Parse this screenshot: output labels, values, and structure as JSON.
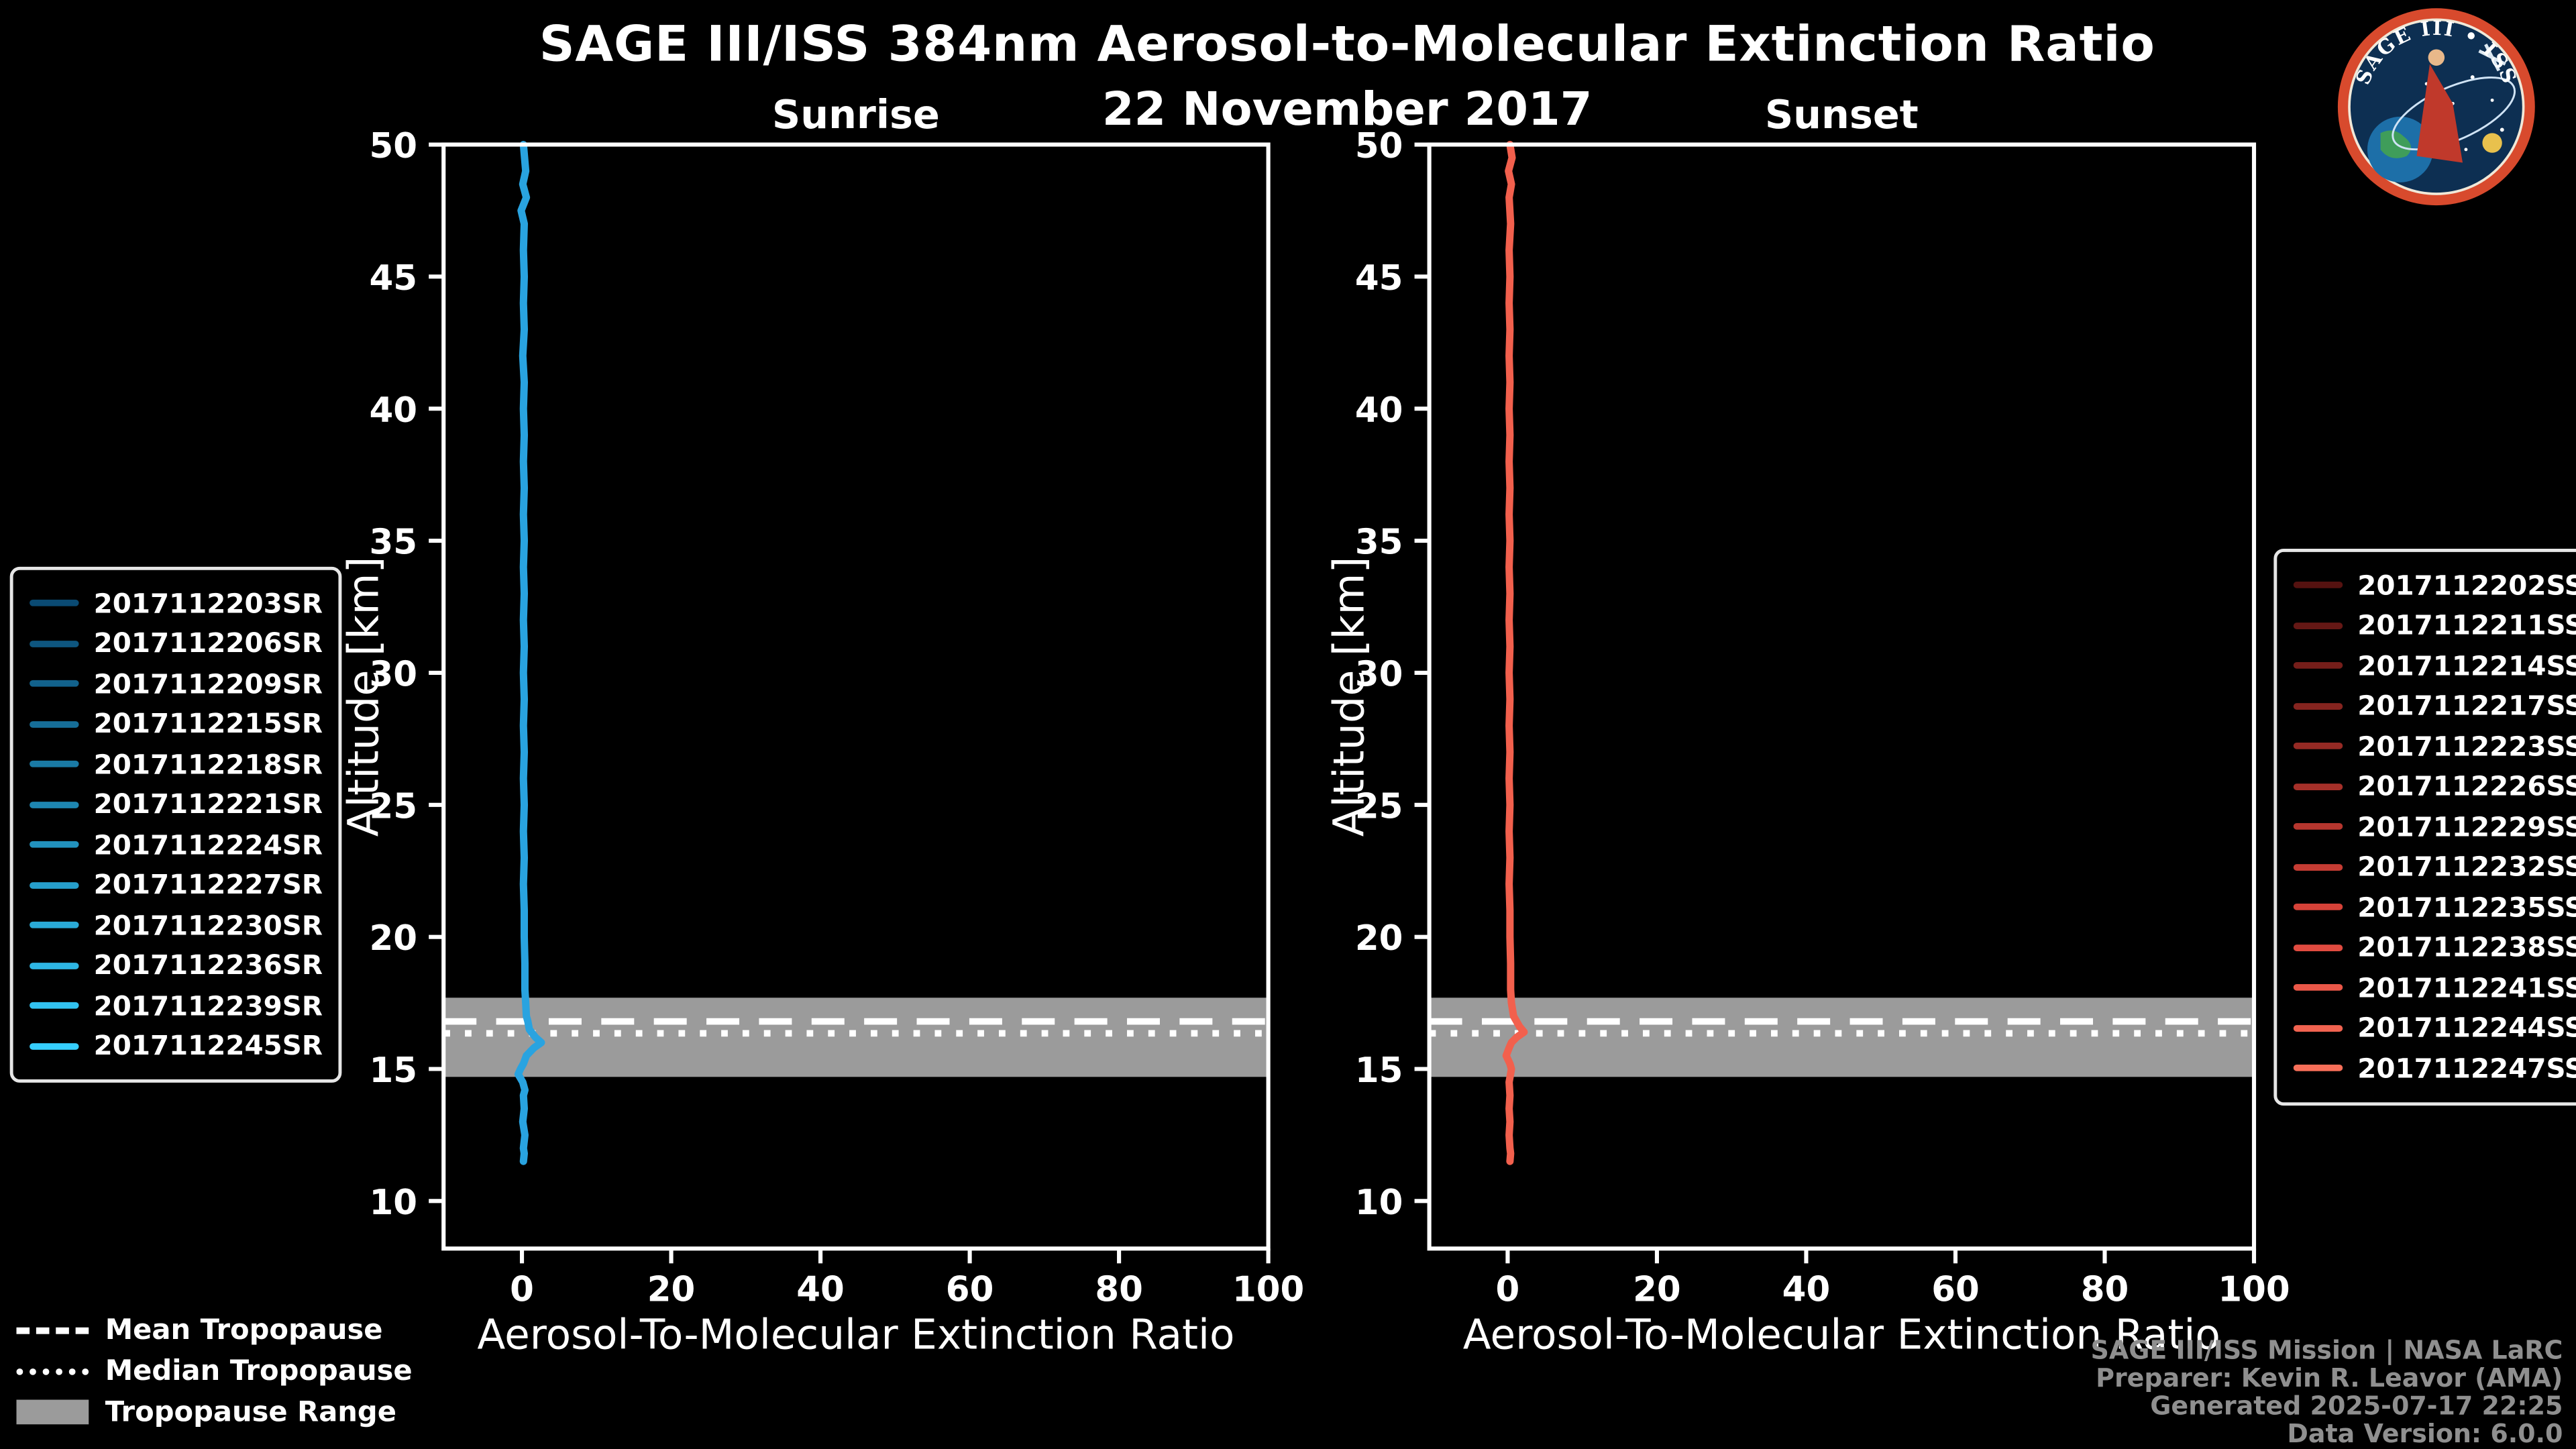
{
  "header": {
    "title": "SAGE III/ISS 384nm Aerosol-to-Molecular Extinction Ratio",
    "date": "22 November 2017"
  },
  "logo": {
    "title": "SAGE III • ISS"
  },
  "chart_data": {
    "type": "line",
    "title": "SAGE III/ISS 384nm Aerosol-to-Molecular Extinction Ratio",
    "subtitle": "22 November 2017",
    "x_label": "Aerosol-To-Molecular Extinction Ratio",
    "y_label": "Altitude [km]",
    "x_ticks": [
      0,
      20,
      40,
      60,
      80,
      100
    ],
    "y_ticks": [
      10,
      15,
      20,
      25,
      30,
      35,
      40,
      45,
      50
    ],
    "x_range": [
      -10.5,
      100
    ],
    "y_range": [
      8.2,
      50
    ],
    "grid": false,
    "tropopause": {
      "mean_km": 16.8,
      "median_km": 16.35,
      "range_km": [
        14.7,
        17.7
      ],
      "band_color": "#9b9b9b",
      "line_color": "#ffffff"
    },
    "panels": [
      {
        "id": "sunrise",
        "title": "Sunrise",
        "line_color": "#29a3e0",
        "profile": [
          [
            50,
            0.2
          ],
          [
            49,
            0.5
          ],
          [
            48.5,
            0.1
          ],
          [
            48,
            0.6
          ],
          [
            47.5,
            -0.1
          ],
          [
            47,
            0.3
          ],
          [
            46,
            0.2
          ],
          [
            45,
            0.3
          ],
          [
            44,
            0.2
          ],
          [
            43,
            0.3
          ],
          [
            42,
            0.1
          ],
          [
            41,
            0.3
          ],
          [
            40,
            0.2
          ],
          [
            39,
            0.3
          ],
          [
            38,
            0.2
          ],
          [
            37,
            0.3
          ],
          [
            36,
            0.2
          ],
          [
            35,
            0.3
          ],
          [
            34,
            0.2
          ],
          [
            33,
            0.3
          ],
          [
            32,
            0.2
          ],
          [
            31,
            0.3
          ],
          [
            30,
            0.2
          ],
          [
            29,
            0.3
          ],
          [
            28,
            0.2
          ],
          [
            27,
            0.3
          ],
          [
            26,
            0.2
          ],
          [
            25,
            0.3
          ],
          [
            24,
            0.2
          ],
          [
            23,
            0.3
          ],
          [
            22,
            0.2
          ],
          [
            21,
            0.3
          ],
          [
            20,
            0.3
          ],
          [
            19,
            0.4
          ],
          [
            18,
            0.4
          ],
          [
            17.5,
            0.5
          ],
          [
            17,
            0.6
          ],
          [
            16.8,
            0.8
          ],
          [
            16.5,
            1.0
          ],
          [
            16.2,
            1.8
          ],
          [
            16,
            2.6
          ],
          [
            15.8,
            1.6
          ],
          [
            15.5,
            0.6
          ],
          [
            15.2,
            0.2
          ],
          [
            15,
            -0.2
          ],
          [
            14.8,
            -0.5
          ],
          [
            14.5,
            0.1
          ],
          [
            14.2,
            0.4
          ],
          [
            14,
            0.2
          ],
          [
            13.5,
            0.3
          ],
          [
            13,
            0.1
          ],
          [
            12.5,
            0.4
          ],
          [
            12,
            0.2
          ],
          [
            11.8,
            0.3
          ],
          [
            11.5,
            0.2
          ]
        ]
      },
      {
        "id": "sunset",
        "title": "Sunset",
        "line_color": "#f2604d",
        "profile": [
          [
            50,
            0.3
          ],
          [
            49.5,
            0.6
          ],
          [
            49,
            0.1
          ],
          [
            48.5,
            0.5
          ],
          [
            48,
            0.2
          ],
          [
            47,
            0.4
          ],
          [
            46,
            0.2
          ],
          [
            45,
            0.3
          ],
          [
            44,
            0.2
          ],
          [
            43,
            0.3
          ],
          [
            42,
            0.2
          ],
          [
            41,
            0.3
          ],
          [
            40,
            0.2
          ],
          [
            39,
            0.3
          ],
          [
            38,
            0.2
          ],
          [
            37,
            0.3
          ],
          [
            36,
            0.2
          ],
          [
            35,
            0.3
          ],
          [
            34,
            0.2
          ],
          [
            33,
            0.3
          ],
          [
            32,
            0.2
          ],
          [
            31,
            0.3
          ],
          [
            30,
            0.2
          ],
          [
            29,
            0.3
          ],
          [
            28,
            0.2
          ],
          [
            27,
            0.3
          ],
          [
            26,
            0.2
          ],
          [
            25,
            0.3
          ],
          [
            24,
            0.2
          ],
          [
            23,
            0.3
          ],
          [
            22,
            0.2
          ],
          [
            21,
            0.3
          ],
          [
            20,
            0.3
          ],
          [
            19,
            0.4
          ],
          [
            18,
            0.4
          ],
          [
            17.5,
            0.5
          ],
          [
            17,
            0.8
          ],
          [
            16.6,
            1.6
          ],
          [
            16.4,
            2.2
          ],
          [
            16.2,
            1.2
          ],
          [
            16,
            0.5
          ],
          [
            15.8,
            0.2
          ],
          [
            15.5,
            -0.2
          ],
          [
            15.2,
            0.3
          ],
          [
            15,
            0.5
          ],
          [
            14.5,
            0.2
          ],
          [
            14,
            0.3
          ],
          [
            13.5,
            0.2
          ],
          [
            13,
            0.3
          ],
          [
            12.5,
            0.2
          ],
          [
            12,
            0.3
          ],
          [
            11.8,
            0.4
          ],
          [
            11.5,
            0.3
          ]
        ]
      }
    ]
  },
  "legends": {
    "sunrise": {
      "items": [
        {
          "label": "2017112203SR",
          "color": "#0a4a73"
        },
        {
          "label": "2017112206SR",
          "color": "#0e567f"
        },
        {
          "label": "2017112209SR",
          "color": "#12628c"
        },
        {
          "label": "2017112215SR",
          "color": "#166e98"
        },
        {
          "label": "2017112218SR",
          "color": "#1a7aa5"
        },
        {
          "label": "2017112221SR",
          "color": "#1e86b1"
        },
        {
          "label": "2017112224SR",
          "color": "#2292be"
        },
        {
          "label": "2017112227SR",
          "color": "#269ecb"
        },
        {
          "label": "2017112230SR",
          "color": "#2aaad7"
        },
        {
          "label": "2017112236SR",
          "color": "#2eb6e4"
        },
        {
          "label": "2017112239SR",
          "color": "#32c2f0"
        },
        {
          "label": "2017112245SR",
          "color": "#36cefd"
        }
      ]
    },
    "sunset": {
      "items": [
        {
          "label": "2017112202SS",
          "color": "#551210"
        },
        {
          "label": "2017112211SS",
          "color": "#651815"
        },
        {
          "label": "2017112214SS",
          "color": "#751e1a"
        },
        {
          "label": "2017112217SS",
          "color": "#85241f"
        },
        {
          "label": "2017112223SS",
          "color": "#952a24"
        },
        {
          "label": "2017112226SS",
          "color": "#a53029"
        },
        {
          "label": "2017112229SS",
          "color": "#b5362e"
        },
        {
          "label": "2017112232SS",
          "color": "#c53c33"
        },
        {
          "label": "2017112235SS",
          "color": "#d54238"
        },
        {
          "label": "2017112238SS",
          "color": "#e04b40"
        },
        {
          "label": "2017112241SS",
          "color": "#ea5748"
        },
        {
          "label": "2017112244SS",
          "color": "#f16350"
        },
        {
          "label": "2017112247SS",
          "color": "#f76f59"
        }
      ]
    }
  },
  "tropopause_legend": {
    "items": [
      {
        "label": "Mean Tropopause",
        "style": "dashed"
      },
      {
        "label": "Median Tropopause",
        "style": "dotted"
      },
      {
        "label": "Tropopause Range",
        "style": "patch"
      }
    ]
  },
  "credits": {
    "lines": [
      "SAGE III/ISS Mission | NASA LaRC",
      "Preparer: Kevin R. Leavor (AMA)",
      "Generated 2025-07-17 22:25",
      "Data Version: 6.0.0"
    ]
  }
}
